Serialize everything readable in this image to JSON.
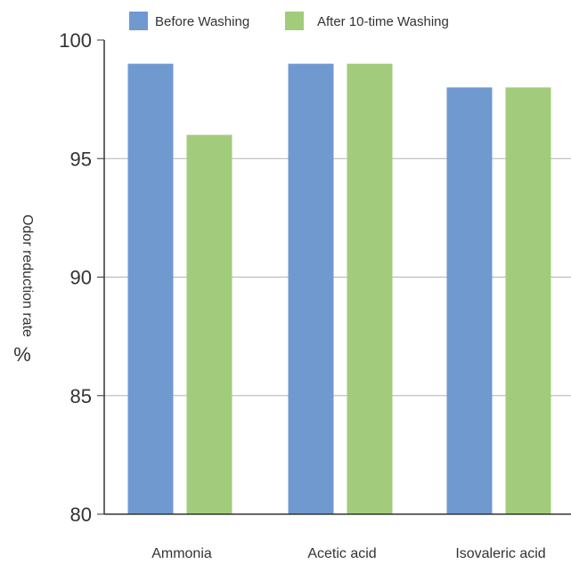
{
  "chart_data": {
    "type": "bar",
    "categories": [
      "Ammonia",
      "Acetic acid",
      "Isovaleric acid"
    ],
    "series": [
      {
        "name": "Before Washing",
        "values": [
          99,
          99,
          98
        ],
        "color": "#7099d0"
      },
      {
        "name": "After 10-time Washing",
        "values": [
          96,
          99,
          98
        ],
        "color": "#a2cc7c"
      }
    ],
    "title": "",
    "xlabel": "",
    "ylabel": "Odor reduction rate",
    "ylabel_unit": "%",
    "ylim": [
      80,
      100
    ],
    "yticks": [
      80,
      85,
      90,
      95,
      100
    ],
    "grid": true,
    "legend_position": "top"
  }
}
